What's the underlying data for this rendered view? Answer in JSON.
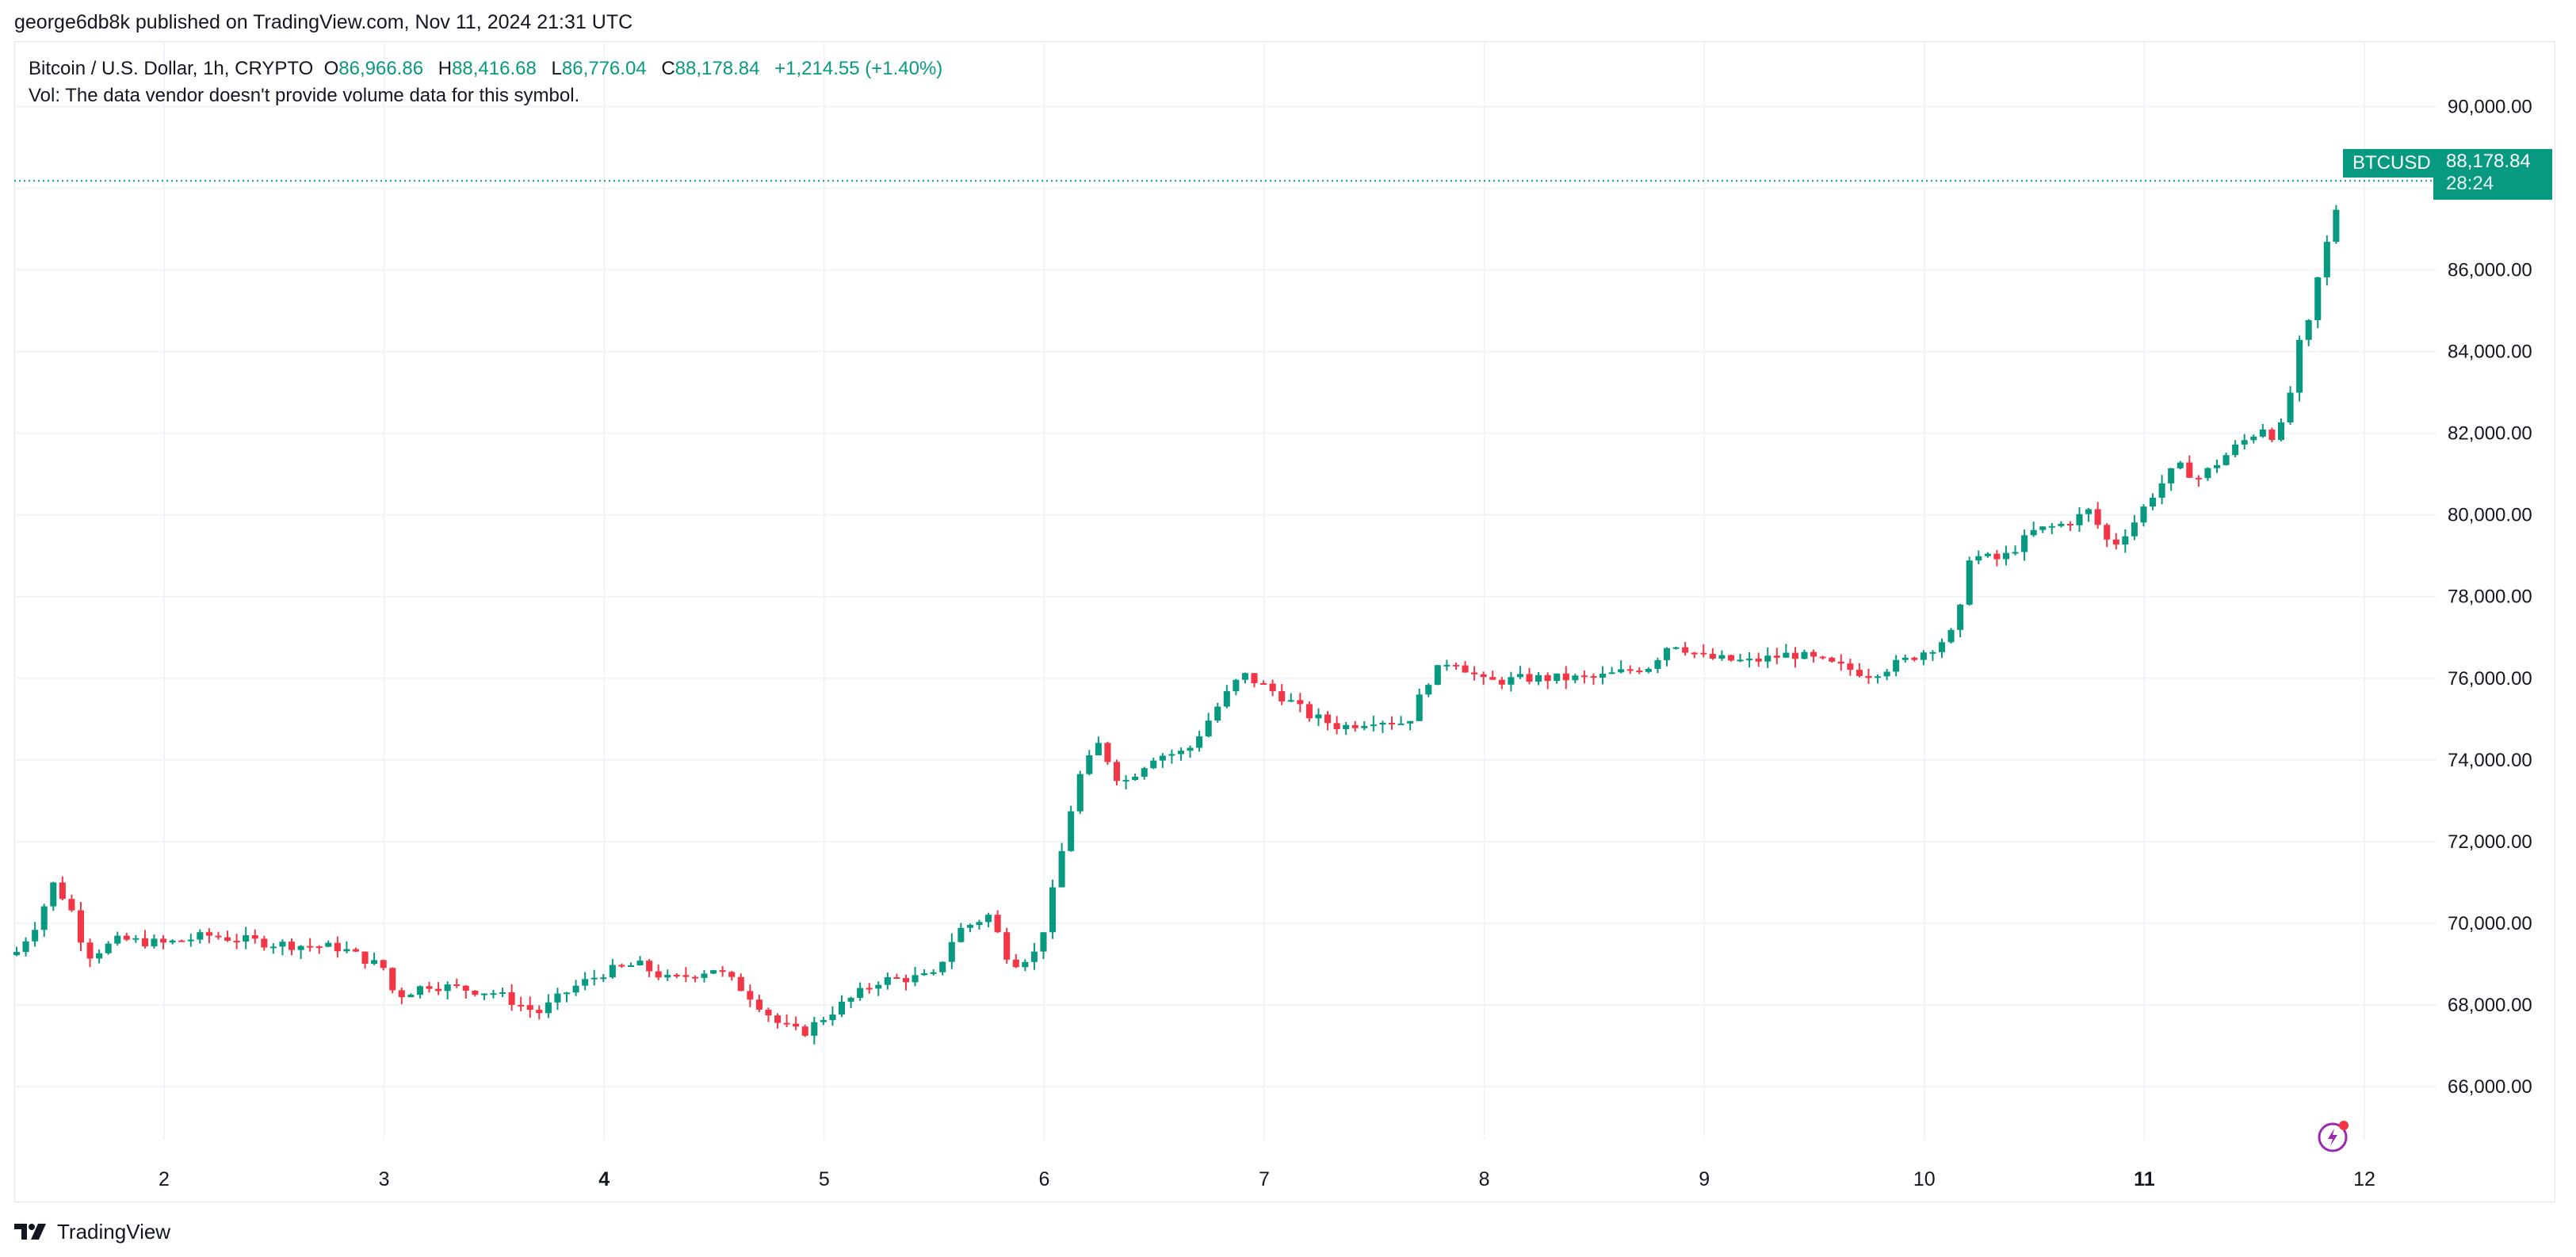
{
  "header": {
    "publish_line": "george6db8k published on TradingView.com, Nov 11, 2024 21:31 UTC"
  },
  "legend": {
    "symbol": "Bitcoin / U.S. Dollar, 1h, CRYPTO",
    "o_label": "O",
    "o_value": "86,966.86",
    "h_label": "H",
    "h_value": "88,416.68",
    "l_label": "L",
    "l_value": "86,776.04",
    "c_label": "C",
    "c_value": "88,178.84",
    "change": "+1,214.55 (+1.40%)",
    "volume_note": "Vol: The data vendor doesn't provide volume data for this symbol."
  },
  "price_tag": {
    "symbol": "BTCUSD",
    "price": "88,178.84",
    "countdown": "28:24"
  },
  "footer": {
    "brand": "TradingView"
  },
  "colors": {
    "up": "#089981",
    "down": "#f23645",
    "grid": "#f0f3fa",
    "axis_text": "#131722"
  },
  "chart_data": {
    "type": "candlestick",
    "interval": "1h",
    "y_ticks": [
      "66,000.00",
      "68,000.00",
      "70,000.00",
      "72,000.00",
      "74,000.00",
      "76,000.00",
      "78,000.00",
      "80,000.00",
      "82,000.00",
      "84,000.00",
      "86,000.00",
      "88,000.00",
      "90,000.00"
    ],
    "ylim": [
      64700,
      91600
    ],
    "x_ticks": [
      {
        "label": "2",
        "day": 2,
        "bold": false
      },
      {
        "label": "3",
        "day": 3,
        "bold": false
      },
      {
        "label": "4",
        "day": 4,
        "bold": true
      },
      {
        "label": "5",
        "day": 5,
        "bold": false
      },
      {
        "label": "6",
        "day": 6,
        "bold": false
      },
      {
        "label": "7",
        "day": 7,
        "bold": false
      },
      {
        "label": "8",
        "day": 8,
        "bold": false
      },
      {
        "label": "9",
        "day": 9,
        "bold": false
      },
      {
        "label": "10",
        "day": 10,
        "bold": false
      },
      {
        "label": "11",
        "day": 11,
        "bold": true
      },
      {
        "label": "12",
        "day": 12,
        "bold": false
      }
    ],
    "last_price": 88178.84,
    "close_path": [
      [
        1.33,
        69300
      ],
      [
        1.42,
        70000
      ],
      [
        1.5,
        71000
      ],
      [
        1.58,
        70300
      ],
      [
        1.65,
        69200
      ],
      [
        1.8,
        69600
      ],
      [
        2,
        69500
      ],
      [
        2.2,
        69700
      ],
      [
        2.5,
        69500
      ],
      [
        2.8,
        69400
      ],
      [
        3.0,
        68900
      ],
      [
        3.05,
        68200
      ],
      [
        3.2,
        68500
      ],
      [
        3.5,
        68300
      ],
      [
        3.7,
        67800
      ],
      [
        3.85,
        68400
      ],
      [
        4.0,
        68800
      ],
      [
        4.15,
        69000
      ],
      [
        4.3,
        68600
      ],
      [
        4.5,
        68900
      ],
      [
        4.65,
        68300
      ],
      [
        4.8,
        67500
      ],
      [
        4.9,
        67300
      ],
      [
        5.05,
        67900
      ],
      [
        5.25,
        68600
      ],
      [
        5.5,
        68700
      ],
      [
        5.6,
        69800
      ],
      [
        5.75,
        70200
      ],
      [
        5.85,
        69000
      ],
      [
        5.97,
        69300
      ],
      [
        6.05,
        71000
      ],
      [
        6.15,
        73500
      ],
      [
        6.25,
        74400
      ],
      [
        6.35,
        73400
      ],
      [
        6.5,
        74100
      ],
      [
        6.65,
        74200
      ],
      [
        6.8,
        75400
      ],
      [
        6.9,
        76100
      ],
      [
        7.1,
        75500
      ],
      [
        7.2,
        75100
      ],
      [
        7.35,
        74800
      ],
      [
        7.5,
        75000
      ],
      [
        7.65,
        74900
      ],
      [
        7.75,
        76000
      ],
      [
        7.85,
        76500
      ],
      [
        8.0,
        75900
      ],
      [
        8.2,
        76000
      ],
      [
        8.5,
        76000
      ],
      [
        8.75,
        76300
      ],
      [
        8.85,
        76900
      ],
      [
        9.0,
        76500
      ],
      [
        9.2,
        76400
      ],
      [
        9.4,
        76600
      ],
      [
        9.6,
        76300
      ],
      [
        9.75,
        76100
      ],
      [
        9.9,
        76400
      ],
      [
        10.05,
        76800
      ],
      [
        10.15,
        77200
      ],
      [
        10.2,
        79000
      ],
      [
        10.35,
        78900
      ],
      [
        10.5,
        79600
      ],
      [
        10.65,
        79800
      ],
      [
        10.75,
        80100
      ],
      [
        10.85,
        79200
      ],
      [
        10.95,
        79800
      ],
      [
        11.05,
        80600
      ],
      [
        11.15,
        81200
      ],
      [
        11.25,
        80900
      ],
      [
        11.4,
        81600
      ],
      [
        11.55,
        82200
      ],
      [
        11.6,
        81800
      ],
      [
        11.65,
        82600
      ],
      [
        11.7,
        84100
      ],
      [
        11.75,
        84700
      ],
      [
        11.8,
        86100
      ],
      [
        11.85,
        87000
      ],
      [
        11.9,
        88180
      ]
    ]
  }
}
